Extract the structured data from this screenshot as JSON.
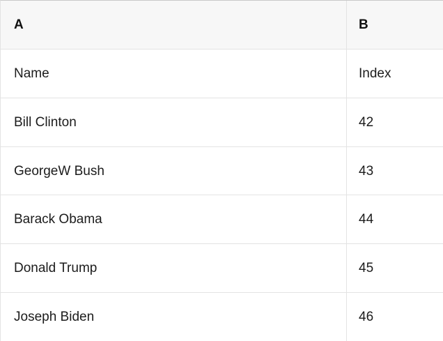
{
  "table": {
    "column_headers": [
      "A",
      "B"
    ],
    "rows": [
      {
        "A": "Name",
        "B": "Index"
      },
      {
        "A": "Bill Clinton",
        "B": "42"
      },
      {
        "A": "GeorgeW Bush",
        "B": "43"
      },
      {
        "A": "Barack Obama",
        "B": "44"
      },
      {
        "A": "Donald Trump",
        "B": "45"
      },
      {
        "A": "Joseph Biden",
        "B": "46"
      }
    ],
    "colors": {
      "header_background": "#f7f7f7",
      "row_background": "#ffffff",
      "grid_line": "#e3e3e3",
      "top_border": "#c8c8c8",
      "text": "#1c1c1c"
    }
  }
}
